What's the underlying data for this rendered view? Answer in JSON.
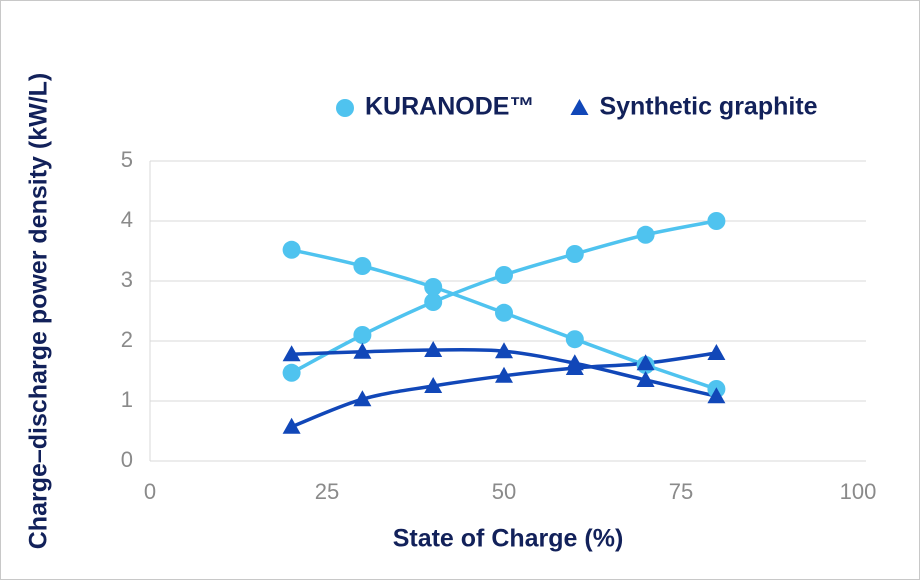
{
  "chart_data": {
    "type": "line",
    "x_label": "State of Charge (%)",
    "y_label": "Charge–discharge power density (kW/L)",
    "x": [
      20,
      30,
      40,
      50,
      60,
      70,
      80
    ],
    "series": [
      {
        "name": "KURANODE™",
        "color": "#4fc3ef",
        "marker": "circle",
        "lines": [
          [
            1.47,
            2.1,
            2.65,
            3.1,
            3.45,
            3.77,
            4.0
          ],
          [
            3.52,
            3.25,
            2.9,
            2.47,
            2.03,
            1.6,
            1.2
          ]
        ]
      },
      {
        "name": "Synthetic graphite",
        "color": "#1147b8",
        "marker": "triangle",
        "lines": [
          [
            0.57,
            1.03,
            1.25,
            1.42,
            1.55,
            1.63,
            1.8
          ],
          [
            1.78,
            1.82,
            1.85,
            1.83,
            1.63,
            1.35,
            1.08
          ]
        ]
      }
    ],
    "xlim": [
      0,
      100
    ],
    "xticks": [
      0,
      25,
      50,
      75,
      100
    ],
    "ylim": [
      0,
      5
    ],
    "yticks": [
      0,
      1,
      2,
      3,
      4,
      5
    ],
    "grid": true,
    "legend": "top"
  }
}
